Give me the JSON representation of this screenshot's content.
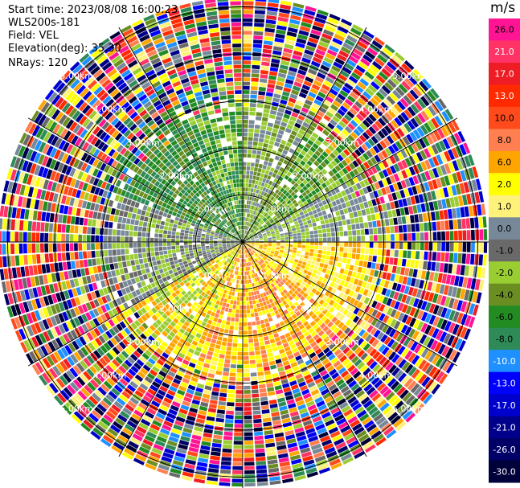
{
  "header": {
    "start_time": "Start time: 2023/08/08 16:00:23",
    "instrument": "WLS200s-181",
    "field": "Field: VEL",
    "elevation": "Elevation(deg): 35.30",
    "nrays": "NRays: 120"
  },
  "chart_data": {
    "type": "heatmap",
    "subtype": "polar-ppi",
    "n_rays": 120,
    "range_rings_km": [
      1.0,
      2.0,
      3.0,
      4.0,
      5.0
    ],
    "ring_labels": [
      "1.0km",
      "2.00km",
      "3.00km",
      "4.00km",
      "5.00km"
    ],
    "max_range_km": 5.2,
    "colorbar": {
      "unit": "m/s",
      "tick_labels": [
        "26.0",
        "21.0",
        "17.0",
        "13.0",
        "10.0",
        "8.0",
        "6.0",
        "2.0",
        "1.0",
        "0.0",
        "-1.0",
        "-2.0",
        "-4.0",
        "-6.0",
        "-8.0",
        "-10.0",
        "-13.0",
        "-17.0",
        "-21.0",
        "-26.0",
        "-30.0"
      ],
      "colors": [
        "#ff1493",
        "#ff3366",
        "#ee1c24",
        "#ff2a00",
        "#ff4a1c",
        "#ff7f50",
        "#ffa500",
        "#ffff00",
        "#fff27a",
        "#778899",
        "#696969",
        "#9acd32",
        "#6b8e23",
        "#228b22",
        "#2e8b57",
        "#1e90ff",
        "#0000ff",
        "#0000cd",
        "#00008b",
        "#000066",
        "#00003a"
      ]
    },
    "velocity_zones": [
      {
        "from_deg": 0,
        "to_deg": 30,
        "colors": [
          "#778899",
          "#9acd32",
          "#6b8e23"
        ]
      },
      {
        "from_deg": 30,
        "to_deg": 60,
        "colors": [
          "#6b8e23",
          "#228b22",
          "#9acd32"
        ]
      },
      {
        "from_deg": 60,
        "to_deg": 90,
        "colors": [
          "#778899",
          "#9acd32"
        ]
      },
      {
        "from_deg": 90,
        "to_deg": 130,
        "colors": [
          "#ffff00",
          "#fff27a",
          "#ffa500"
        ]
      },
      {
        "from_deg": 130,
        "to_deg": 200,
        "colors": [
          "#ffa500",
          "#ff7f50",
          "#ffff00"
        ]
      },
      {
        "from_deg": 200,
        "to_deg": 240,
        "colors": [
          "#ffff00",
          "#9acd32",
          "#ffa500"
        ]
      },
      {
        "from_deg": 240,
        "to_deg": 290,
        "colors": [
          "#778899",
          "#9acd32",
          "#696969"
        ]
      },
      {
        "from_deg": 290,
        "to_deg": 335,
        "colors": [
          "#228b22",
          "#2e8b57",
          "#6b8e23"
        ]
      },
      {
        "from_deg": 335,
        "to_deg": 360,
        "colors": [
          "#228b22",
          "#2e8b57",
          "#9acd32"
        ]
      }
    ],
    "coherent_range_km": 3.0
  }
}
